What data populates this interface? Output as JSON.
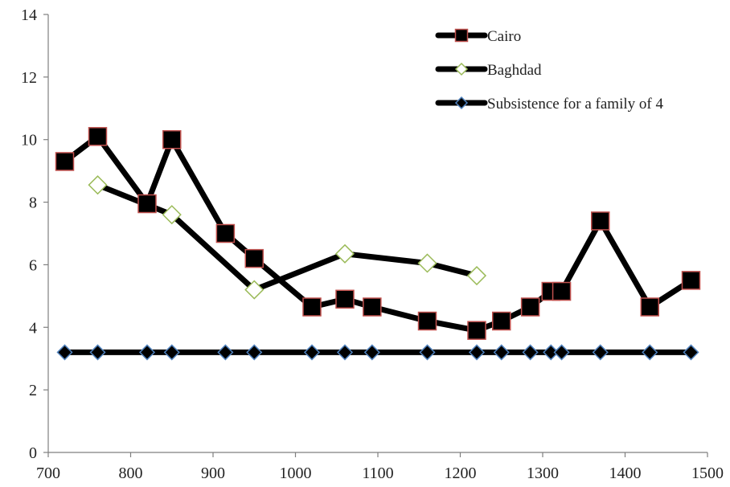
{
  "chart_data": {
    "type": "line",
    "title": "",
    "xlabel": "",
    "ylabel": "",
    "xlim": [
      700,
      1500
    ],
    "ylim": [
      0,
      14
    ],
    "x_ticks": [
      700,
      800,
      900,
      1000,
      1100,
      1200,
      1300,
      1400,
      1500
    ],
    "y_ticks": [
      0,
      2,
      4,
      6,
      8,
      10,
      12,
      14
    ],
    "grid": false,
    "legend_position": "top-right",
    "series": [
      {
        "name": "Cairo",
        "marker": "square",
        "line_color": "#000000",
        "marker_fill": "#000000",
        "marker_stroke": "#c0504d",
        "points": [
          {
            "x": 720,
            "y": 9.3
          },
          {
            "x": 760,
            "y": 10.1
          },
          {
            "x": 820,
            "y": 7.95
          },
          {
            "x": 850,
            "y": 10.0
          },
          {
            "x": 915,
            "y": 7.0
          },
          {
            "x": 950,
            "y": 6.2
          },
          {
            "x": 1020,
            "y": 4.65
          },
          {
            "x": 1060,
            "y": 4.9
          },
          {
            "x": 1093,
            "y": 4.65
          },
          {
            "x": 1160,
            "y": 4.2
          },
          {
            "x": 1220,
            "y": 3.9
          },
          {
            "x": 1250,
            "y": 4.2
          },
          {
            "x": 1285,
            "y": 4.65
          },
          {
            "x": 1310,
            "y": 5.15
          },
          {
            "x": 1323,
            "y": 5.15
          },
          {
            "x": 1370,
            "y": 7.4
          },
          {
            "x": 1430,
            "y": 4.65
          },
          {
            "x": 1480,
            "y": 5.5
          }
        ]
      },
      {
        "name": "Baghdad",
        "marker": "diamond",
        "line_color": "#000000",
        "marker_fill": "#ffffff",
        "marker_stroke": "#9bbb59",
        "points": [
          {
            "x": 760,
            "y": 8.55
          },
          {
            "x": 850,
            "y": 7.6
          },
          {
            "x": 950,
            "y": 5.2
          },
          {
            "x": 1060,
            "y": 6.35
          },
          {
            "x": 1160,
            "y": 6.05
          },
          {
            "x": 1220,
            "y": 5.65
          }
        ]
      },
      {
        "name": "Subsistence for a family of 4",
        "marker": "diamond",
        "line_color": "#000000",
        "marker_fill": "#000000",
        "marker_stroke": "#4f81bd",
        "points": [
          {
            "x": 720,
            "y": 3.2
          },
          {
            "x": 760,
            "y": 3.2
          },
          {
            "x": 820,
            "y": 3.2
          },
          {
            "x": 850,
            "y": 3.2
          },
          {
            "x": 915,
            "y": 3.2
          },
          {
            "x": 950,
            "y": 3.2
          },
          {
            "x": 1020,
            "y": 3.2
          },
          {
            "x": 1060,
            "y": 3.2
          },
          {
            "x": 1093,
            "y": 3.2
          },
          {
            "x": 1160,
            "y": 3.2
          },
          {
            "x": 1220,
            "y": 3.2
          },
          {
            "x": 1250,
            "y": 3.2
          },
          {
            "x": 1285,
            "y": 3.2
          },
          {
            "x": 1310,
            "y": 3.2
          },
          {
            "x": 1323,
            "y": 3.2
          },
          {
            "x": 1370,
            "y": 3.2
          },
          {
            "x": 1430,
            "y": 3.2
          },
          {
            "x": 1480,
            "y": 3.2
          }
        ]
      }
    ]
  }
}
